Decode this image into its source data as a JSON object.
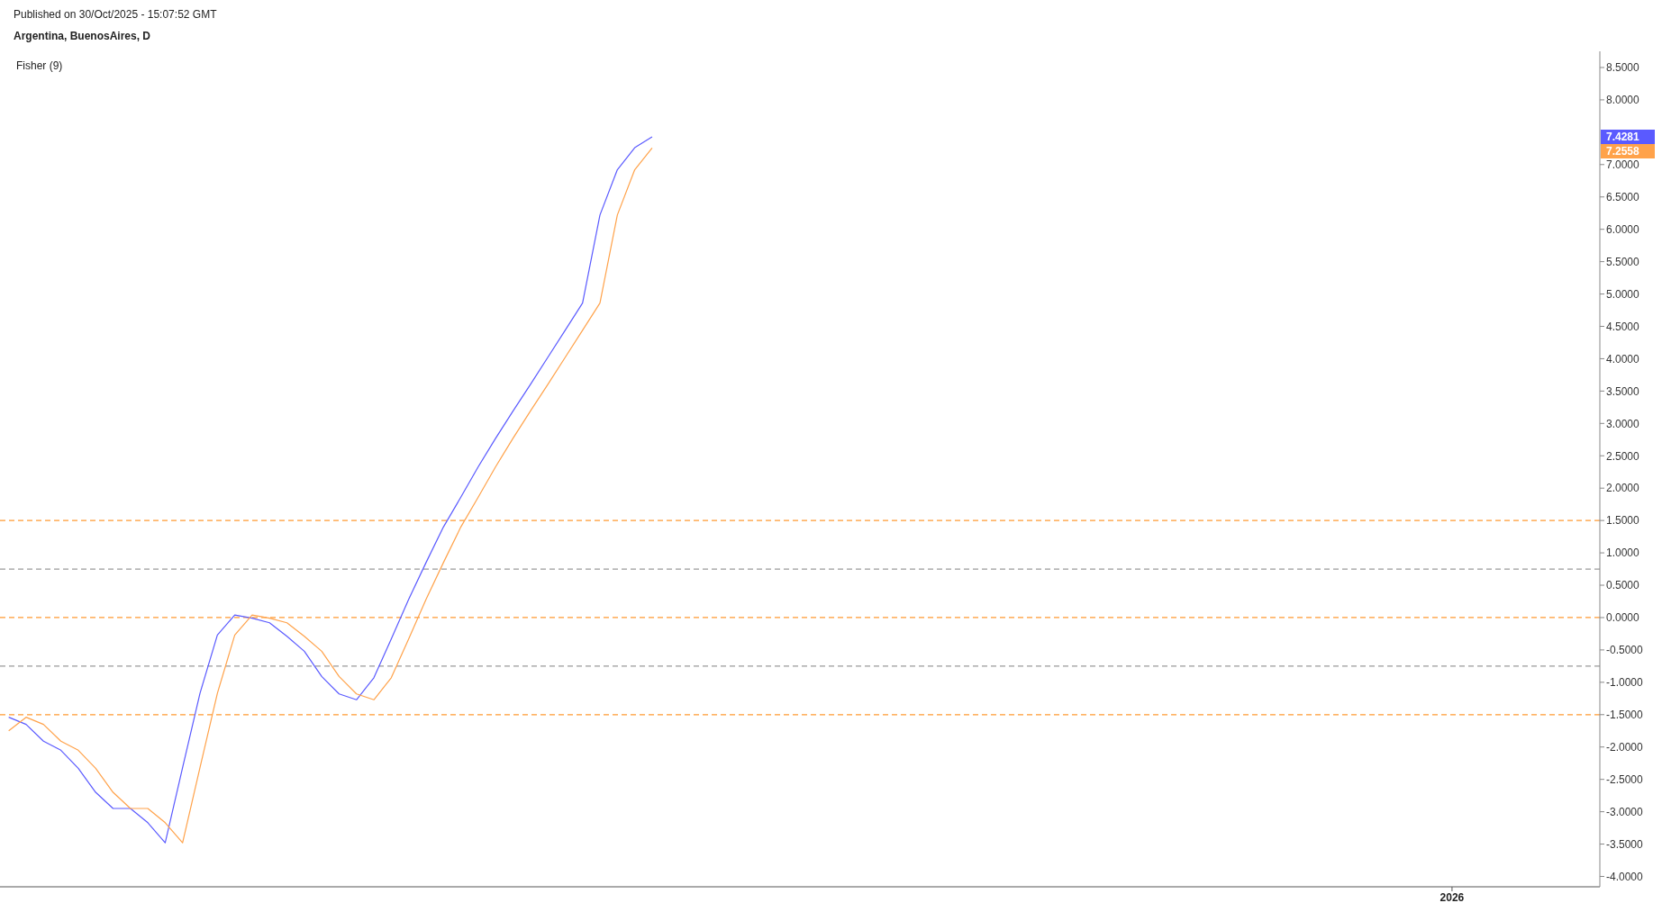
{
  "chart_data": {
    "type": "line",
    "title": "Argentina, BuenosAires, D",
    "subtitle": "Fisher (9)",
    "annotations": [
      "Published on 30/Oct/2025 - 15:07:52 GMT",
      "7.4281",
      "7.2558"
    ],
    "categories": [
      null,
      null,
      null,
      null,
      null,
      null,
      null,
      null,
      null,
      null,
      null,
      null,
      null,
      null,
      null,
      null,
      null,
      null,
      null,
      null,
      null,
      null,
      null,
      null,
      null,
      null,
      null,
      null,
      null,
      null,
      null,
      null,
      null,
      null,
      null,
      null,
      null,
      null,
      null,
      null,
      null,
      null,
      null,
      null,
      null,
      null,
      null,
      null,
      null,
      null,
      null,
      null,
      null,
      null,
      null,
      null,
      null,
      null,
      null,
      null,
      null,
      null,
      null,
      null,
      null,
      null,
      null,
      null,
      null,
      null,
      null,
      null,
      null,
      null,
      null,
      null,
      null,
      null,
      null,
      null,
      null,
      null,
      null,
      "2026",
      null,
      null,
      null,
      null,
      null,
      null,
      null,
      null
    ],
    "series": [
      {
        "color": "#5a5aff",
        "values": [
          -1.54,
          -1.65,
          -1.91,
          -2.05,
          -2.33,
          -2.7,
          -2.95,
          -2.95,
          -3.17,
          -3.48,
          -2.32,
          -1.17,
          -0.27,
          0.04,
          -0.01,
          -0.08,
          -0.29,
          -0.52,
          -0.91,
          -1.18,
          -1.27,
          -0.93,
          -0.33,
          0.28,
          0.85,
          1.4,
          1.86,
          2.33,
          2.77,
          3.19,
          3.6,
          4.02,
          4.44,
          4.86,
          6.22,
          6.92,
          7.26,
          7.4281,
          null,
          null,
          null,
          null,
          null,
          null,
          null,
          null,
          null,
          null,
          null,
          null,
          null,
          null,
          null,
          null,
          null,
          null,
          null,
          null,
          null,
          null,
          null,
          null,
          null,
          null,
          null,
          null,
          null,
          null,
          null,
          null,
          null,
          null,
          null,
          null,
          null,
          null,
          null,
          null,
          null,
          null,
          null,
          null,
          null,
          null,
          null,
          null,
          null,
          null,
          null,
          null,
          null,
          null
        ]
      },
      {
        "color": "#ffa24a",
        "values": [
          -1.75,
          -1.54,
          -1.65,
          -1.91,
          -2.05,
          -2.33,
          -2.7,
          -2.95,
          -2.95,
          -3.17,
          -3.48,
          -2.32,
          -1.17,
          -0.27,
          0.04,
          -0.01,
          -0.08,
          -0.29,
          -0.52,
          -0.91,
          -1.18,
          -1.27,
          -0.93,
          -0.33,
          0.28,
          0.85,
          1.4,
          1.86,
          2.33,
          2.77,
          3.19,
          3.6,
          4.02,
          4.44,
          4.86,
          6.22,
          6.92,
          7.2558,
          null,
          null,
          null,
          null,
          null,
          null,
          null,
          null,
          null,
          null,
          null,
          null,
          null,
          null,
          null,
          null,
          null,
          null,
          null,
          null,
          null,
          null,
          null,
          null,
          null,
          null,
          null,
          null,
          null,
          null,
          null,
          null,
          null,
          null,
          null,
          null,
          null,
          null,
          null,
          null,
          null,
          null,
          null,
          null,
          null,
          null,
          null,
          null,
          null,
          null,
          null,
          null,
          null,
          null
        ]
      }
    ],
    "ylim": [
      -4.16,
      8.75
    ],
    "yticks": [
      {
        "value": -4,
        "label": "-4.0000"
      },
      {
        "value": -3.5,
        "label": "-3.5000"
      },
      {
        "value": -3,
        "label": "-3.0000"
      },
      {
        "value": -2.5,
        "label": "-2.5000"
      },
      {
        "value": -2,
        "label": "-2.0000"
      },
      {
        "value": -1.5,
        "label": "-1.5000"
      },
      {
        "value": -1,
        "label": "-1.0000"
      },
      {
        "value": -0.5,
        "label": "-0.5000"
      },
      {
        "value": 0,
        "label": "0.0000"
      },
      {
        "value": 0.5,
        "label": "0.5000"
      },
      {
        "value": 1,
        "label": "1.0000"
      },
      {
        "value": 1.5,
        "label": "1.5000"
      },
      {
        "value": 2,
        "label": "2.0000"
      },
      {
        "value": 2.5,
        "label": "2.5000"
      },
      {
        "value": 3,
        "label": "3.0000"
      },
      {
        "value": 3.5,
        "label": "3.5000"
      },
      {
        "value": 4,
        "label": "4.0000"
      },
      {
        "value": 4.5,
        "label": "4.5000"
      },
      {
        "value": 5,
        "label": "5.0000"
      },
      {
        "value": 5.5,
        "label": "5.5000"
      },
      {
        "value": 6,
        "label": "6.0000"
      },
      {
        "value": 6.5,
        "label": "6.5000"
      },
      {
        "value": 7,
        "label": "7.0000"
      },
      {
        "value": 8,
        "label": "8.0000"
      },
      {
        "value": 8.5,
        "label": "8.5000"
      }
    ],
    "ref_lines": [
      {
        "axis": "y",
        "value": 1.5,
        "color": "#ff9a33",
        "line_style": "dashed"
      },
      {
        "axis": "y",
        "value": 0.75,
        "color": "#9a9a9a",
        "line_style": "dashed"
      },
      {
        "axis": "y",
        "value": 0,
        "color": "#ff9a33",
        "line_style": "dashed"
      },
      {
        "axis": "y",
        "value": -0.75,
        "color": "#9a9a9a",
        "line_style": "dashed"
      },
      {
        "axis": "y",
        "value": -1.5,
        "color": "#ff9a33",
        "line_style": "dashed"
      }
    ]
  }
}
